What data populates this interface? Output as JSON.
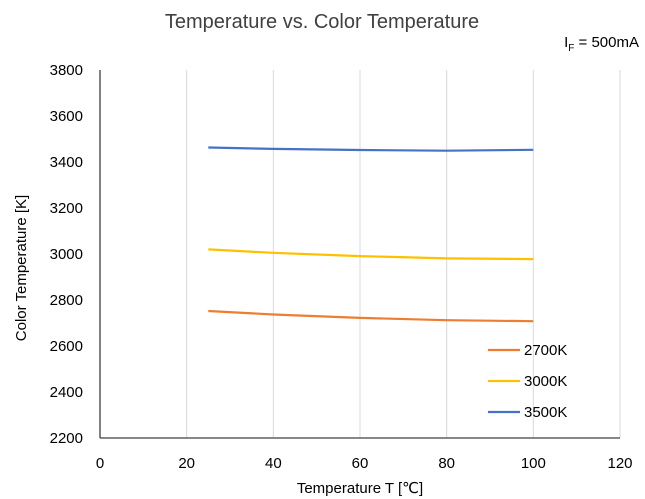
{
  "chart_data": {
    "type": "line",
    "title": "Temperature vs. Color Temperature",
    "condition": {
      "prefix": "I",
      "subscript": "F",
      "suffix": " = 500mA"
    },
    "xlabel": "Temperature T [℃]",
    "ylabel": "Color Temperature  [K]",
    "xlim": [
      0,
      120
    ],
    "ylim": [
      2200,
      3800
    ],
    "xticks": [
      0,
      20,
      40,
      60,
      80,
      100,
      120
    ],
    "yticks": [
      2200,
      2400,
      2600,
      2800,
      3000,
      3200,
      3400,
      3600,
      3800
    ],
    "grid": "vertical",
    "legend_position": "bottom-right",
    "series": [
      {
        "name": "2700K",
        "color": "#ed7d31",
        "x": [
          25,
          40,
          60,
          80,
          100
        ],
        "y": [
          2752,
          2737,
          2722,
          2712,
          2708
        ]
      },
      {
        "name": "3000K",
        "color": "#ffc000",
        "x": [
          25,
          40,
          60,
          80,
          100
        ],
        "y": [
          3020,
          3005,
          2991,
          2981,
          2978
        ]
      },
      {
        "name": "3500K",
        "color": "#4472c4",
        "x": [
          25,
          40,
          60,
          80,
          100
        ],
        "y": [
          3463,
          3457,
          3452,
          3449,
          3453
        ]
      }
    ]
  }
}
